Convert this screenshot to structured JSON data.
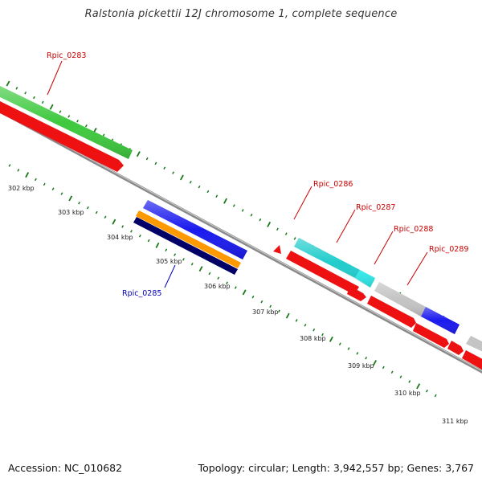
{
  "title": "Ralstonia pickettii 12J chromosome 1, complete sequence",
  "footer": {
    "accession_label": "Accession:",
    "accession": "NC_010682",
    "summary": "Topology: circular; Length: 3,942,557 bp; Genes: 3,767"
  },
  "scale": {
    "unit": "kbp",
    "ticks": [
      "302 kbp",
      "303 kbp",
      "304 kbp",
      "305 kbp",
      "306 kbp",
      "307 kbp",
      "308 kbp",
      "309 kbp",
      "310 kbp",
      "311 kbp"
    ]
  },
  "genes": [
    {
      "name": "Rpic_0283",
      "strand": "forward",
      "color": "#cc0000"
    },
    {
      "name": "Rpic_0285",
      "strand": "reverse",
      "color": "#0000bb"
    },
    {
      "name": "Rpic_0286",
      "strand": "forward",
      "color": "#cc0000"
    },
    {
      "name": "Rpic_0287",
      "strand": "forward",
      "color": "#cc0000"
    },
    {
      "name": "Rpic_0288",
      "strand": "forward",
      "color": "#cc0000"
    },
    {
      "name": "Rpic_0289",
      "strand": "forward",
      "color": "#cc0000"
    }
  ],
  "feature_colors": {
    "backbone": "#8a8a8a",
    "cds": "#ee1111",
    "gene_green": "#3ec93e",
    "gene_blue": "#1a1aee",
    "gene_cyan": "#22cccc",
    "gene_grey": "#c4c4c4",
    "gene_orange": "#ff9900",
    "gene_navy": "#000066",
    "tick": "#1a7a1a"
  }
}
